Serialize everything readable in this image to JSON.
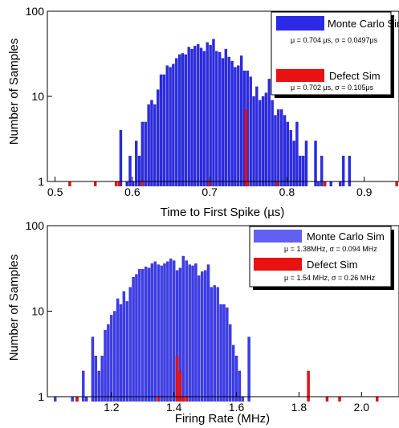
{
  "chart_data": [
    {
      "type": "bar",
      "xlabel": "Time to First Spike (µs)",
      "ylabel": "Number of Samples",
      "xlim": [
        0.49,
        0.945
      ],
      "ylim": [
        1,
        100
      ],
      "yscale": "log",
      "xticks": [
        "0.5",
        "0.6",
        "0.7",
        "0.8",
        "0.9"
      ],
      "xtick_values": [
        0.5,
        0.6,
        0.7,
        0.8,
        0.9
      ],
      "yticks": [
        "1",
        "10",
        "100"
      ],
      "ytick_values": [
        1,
        10,
        100
      ],
      "bar_width": 0.0032,
      "legend_position": "top-right",
      "series": [
        {
          "name": "Monte Carlo Sim",
          "stats": "μ = 0.704 μs, σ = 0.0497μs",
          "color": "#2a2ae8",
          "x": [
            0.585,
            0.593,
            0.597,
            0.601,
            0.605,
            0.609,
            0.613,
            0.617,
            0.621,
            0.625,
            0.629,
            0.633,
            0.637,
            0.641,
            0.645,
            0.649,
            0.653,
            0.657,
            0.661,
            0.665,
            0.669,
            0.673,
            0.677,
            0.681,
            0.685,
            0.689,
            0.693,
            0.697,
            0.701,
            0.705,
            0.709,
            0.713,
            0.717,
            0.721,
            0.725,
            0.729,
            0.733,
            0.737,
            0.741,
            0.745,
            0.749,
            0.753,
            0.757,
            0.761,
            0.765,
            0.769,
            0.773,
            0.777,
            0.781,
            0.785,
            0.789,
            0.793,
            0.797,
            0.801,
            0.805,
            0.809,
            0.813,
            0.817,
            0.821,
            0.825,
            0.837,
            0.841,
            0.845,
            0.849,
            0.857,
            0.869,
            0.873,
            0.881
          ],
          "values": [
            4,
            1,
            2,
            1,
            3,
            2,
            5,
            5,
            8,
            9,
            8,
            12,
            18,
            18,
            23,
            22,
            24,
            28,
            31,
            32,
            31,
            38,
            36,
            39,
            41,
            37,
            34,
            43,
            40,
            47,
            34,
            33,
            28,
            36,
            29,
            26,
            22,
            23,
            30,
            20,
            20,
            17,
            10,
            13,
            9,
            10,
            11,
            16,
            9,
            6,
            7,
            7,
            6,
            5,
            4,
            3,
            5,
            2,
            2,
            3,
            3,
            1,
            2,
            1,
            1,
            1,
            2,
            2
          ]
        },
        {
          "name": "Defect Sim",
          "stats": "μ = 0.702 μs, σ = 0.105μs",
          "color": "#e81212",
          "x": [
            0.519,
            0.552,
            0.579,
            0.583,
            0.613,
            0.699,
            0.747,
            0.749,
            0.787,
            0.849,
            0.942
          ],
          "values": [
            1,
            1,
            1,
            1,
            1,
            1,
            7,
            1,
            1,
            1,
            1
          ]
        }
      ]
    },
    {
      "type": "bar",
      "xlabel": "Firing Rate (MHz)",
      "ylabel": "Number of Samples",
      "xlim": [
        0.995,
        2.12
      ],
      "ylim": [
        1,
        100
      ],
      "yscale": "log",
      "xticks": [
        "1.2",
        "1.4",
        "1.6",
        "1.8",
        "2.0"
      ],
      "xtick_values": [
        1.2,
        1.4,
        1.6,
        1.8,
        2.0
      ],
      "yticks": [
        "1",
        "10",
        "100"
      ],
      "ytick_values": [
        1,
        10,
        100
      ],
      "bar_width": 0.008,
      "legend_position": "top-right",
      "series": [
        {
          "name": "Monte Carlo Sim",
          "stats": "μ = 1.38MHz,  σ = 0.094 MHz",
          "color": "#3c3cf0",
          "x": [
            1.02,
            1.075,
            1.09,
            1.11,
            1.12,
            1.14,
            1.15,
            1.16,
            1.17,
            1.18,
            1.19,
            1.2,
            1.21,
            1.22,
            1.23,
            1.24,
            1.25,
            1.26,
            1.27,
            1.28,
            1.29,
            1.3,
            1.31,
            1.32,
            1.33,
            1.34,
            1.35,
            1.36,
            1.37,
            1.38,
            1.39,
            1.4,
            1.41,
            1.42,
            1.43,
            1.44,
            1.45,
            1.46,
            1.47,
            1.48,
            1.49,
            1.5,
            1.51,
            1.52,
            1.53,
            1.54,
            1.55,
            1.56,
            1.57,
            1.58,
            1.59,
            1.6,
            1.61,
            1.62,
            1.64
          ],
          "values": [
            1,
            1,
            1,
            2,
            1,
            5,
            3,
            2,
            3,
            6,
            7,
            9,
            10,
            14,
            12,
            17,
            13,
            19,
            25,
            27,
            31,
            31,
            33,
            32,
            36,
            38,
            35,
            34,
            36,
            38,
            41,
            39,
            30,
            32,
            44,
            39,
            35,
            34,
            36,
            26,
            29,
            30,
            35,
            19,
            20,
            19,
            12,
            12,
            11,
            7,
            4,
            3,
            2,
            1,
            5
          ]
        },
        {
          "name": "Defect Sim",
          "stats": "μ = 1.54 MHz, σ = 0.26 MHz",
          "color": "#e81212",
          "x": [
            1.09,
            1.35,
            1.41,
            1.42,
            1.43,
            1.44,
            1.83,
            1.89,
            1.93,
            2.05
          ],
          "values": [
            1,
            1,
            3,
            2,
            1,
            1,
            2,
            1,
            1,
            1
          ]
        }
      ]
    }
  ]
}
